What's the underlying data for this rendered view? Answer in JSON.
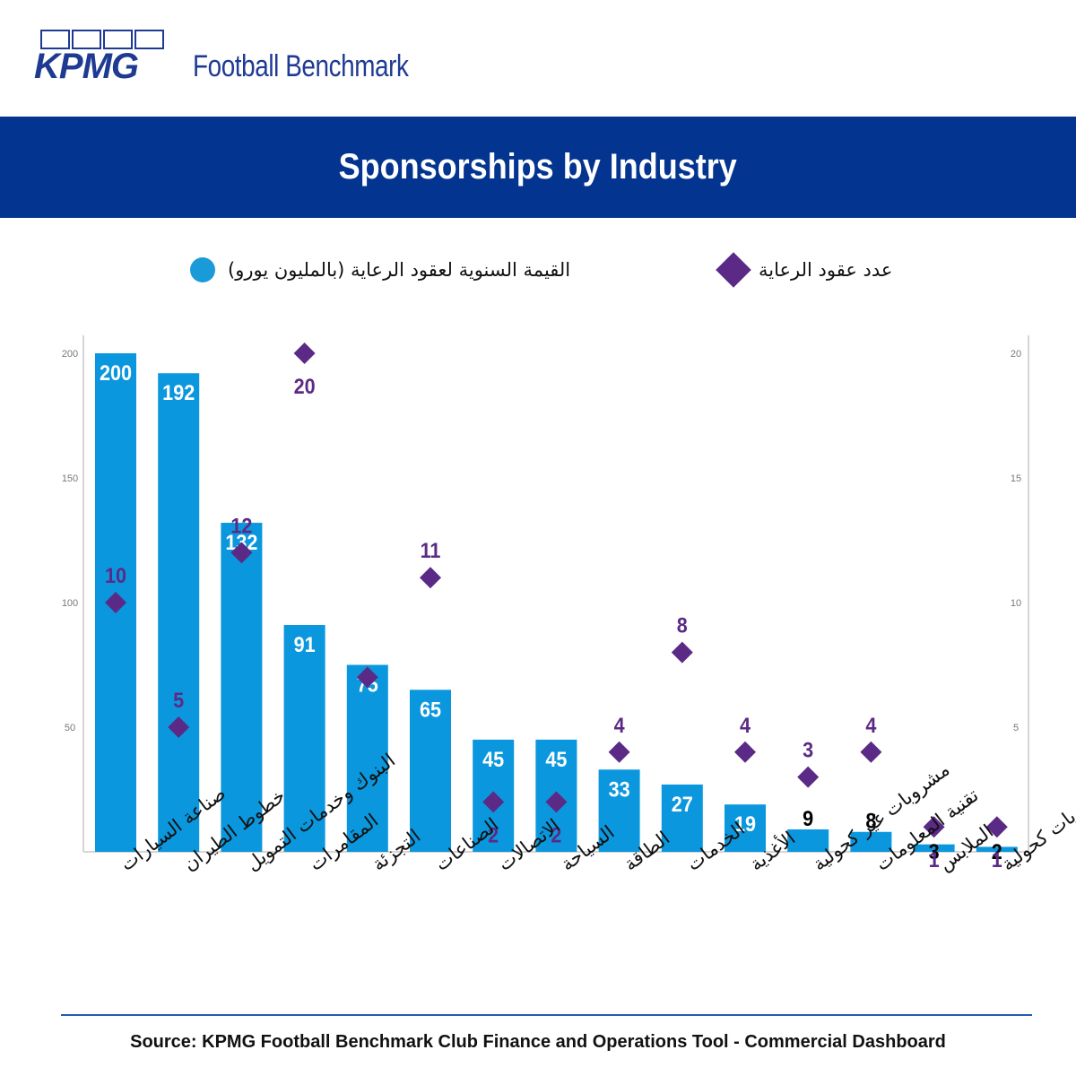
{
  "header": {
    "logo_text": "KPMG",
    "brand_text": "Football Benchmark"
  },
  "banner": {
    "title": "Sponsorships by Industry"
  },
  "legend": {
    "value_label": "القيمة السنوية لعقود الرعاية (بالمليون يورو)",
    "count_label": "عدد عقود الرعاية"
  },
  "colors": {
    "bar": "#0b97dd",
    "diamond": "#5b2a86",
    "banner": "#03348f",
    "brand": "#1f3a93"
  },
  "chart_data": {
    "type": "bar",
    "categories": [
      "صناعة السيارات",
      "خطوط الطيران",
      "البنوك وخدمات التمويل",
      "المقامرات",
      "التجزئة",
      "الصناعات",
      "الاتصالات",
      "السياحة",
      "الطاقة",
      "الخدمات",
      "الأغذية",
      "مشروبات غير كحولية",
      "تقنية المعلومات",
      "الملابس",
      "مشروبات كحولية"
    ],
    "series": [
      {
        "name": "القيمة السنوية لعقود الرعاية (بالمليون يورو)",
        "type": "bar",
        "axis": "left",
        "values": [
          200,
          192,
          132,
          91,
          75,
          65,
          45,
          45,
          33,
          27,
          19,
          9,
          8,
          3,
          2
        ]
      },
      {
        "name": "عدد عقود الرعاية",
        "type": "scatter",
        "marker": "diamond",
        "axis": "right",
        "values": [
          10,
          5,
          12,
          20,
          7,
          11,
          2,
          2,
          4,
          8,
          4,
          3,
          4,
          1,
          1
        ]
      }
    ],
    "diamond_labels": [
      "10",
      "5",
      "12",
      "20",
      "",
      "11",
      "2",
      "2",
      "4",
      "8",
      "4",
      "3",
      "4",
      "1",
      "1"
    ],
    "y_left": {
      "ticks": [
        50,
        100,
        150,
        200
      ],
      "lim": [
        0,
        200
      ]
    },
    "y_right": {
      "ticks": [
        5,
        10,
        15,
        20
      ],
      "lim": [
        0,
        20
      ]
    },
    "grid": false,
    "legend_position": "top"
  },
  "source": {
    "text": "Source: KPMG Football Benchmark Club Finance and Operations Tool - Commercial Dashboard"
  }
}
